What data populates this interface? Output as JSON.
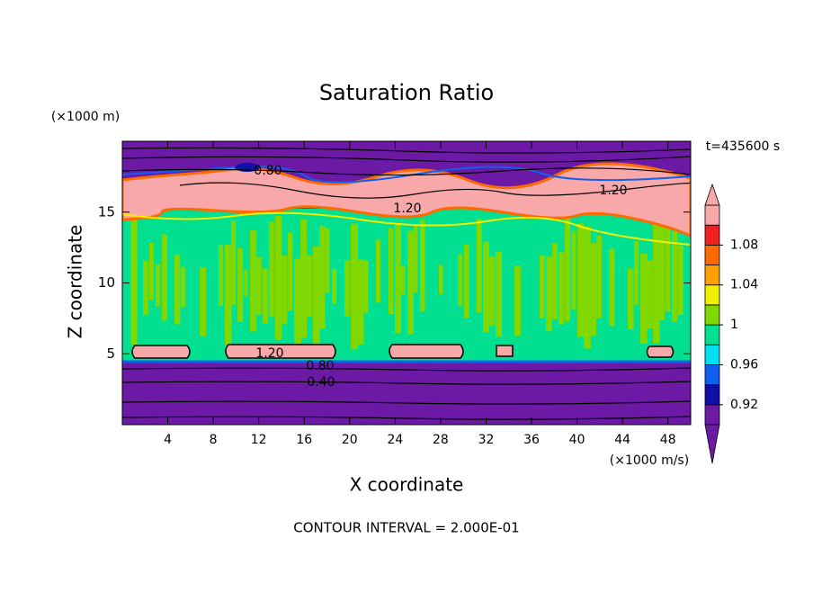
{
  "chart_data": {
    "type": "contour",
    "title": "Saturation Ratio",
    "xlabel": "X coordinate",
    "ylabel": "Z coordinate",
    "x_units": "(×1000 m/s)",
    "y_units": "(×1000 m)",
    "time_label": "t=435600 s",
    "footer": "CONTOUR INTERVAL = 2.000E-01",
    "xlim": [
      0,
      50
    ],
    "xticks": [
      4,
      8,
      12,
      16,
      20,
      24,
      28,
      32,
      36,
      40,
      44,
      48
    ],
    "ylim": [
      0,
      20
    ],
    "yticks": [
      5,
      10,
      15
    ],
    "contour_labels": [
      "0.80",
      "1.20",
      "1.20",
      "1.20",
      "0.80",
      "0.40"
    ],
    "colorbar": {
      "levels": [
        0.9,
        0.92,
        0.94,
        0.96,
        0.98,
        1.0,
        1.02,
        1.04,
        1.06,
        1.08,
        1.1,
        1.12
      ],
      "colors": [
        "#6c1aa6",
        "#1010a8",
        "#1060f0",
        "#00e0f0",
        "#00e090",
        "#80d800",
        "#f0f000",
        "#ffa000",
        "#ff6a00",
        "#f02020",
        "#f8a8a8"
      ],
      "under_color": "#6c1aa6",
      "over_color": "#f8a8a8",
      "ticks": [
        0.92,
        0.96,
        1,
        1.04,
        1.08
      ]
    }
  }
}
